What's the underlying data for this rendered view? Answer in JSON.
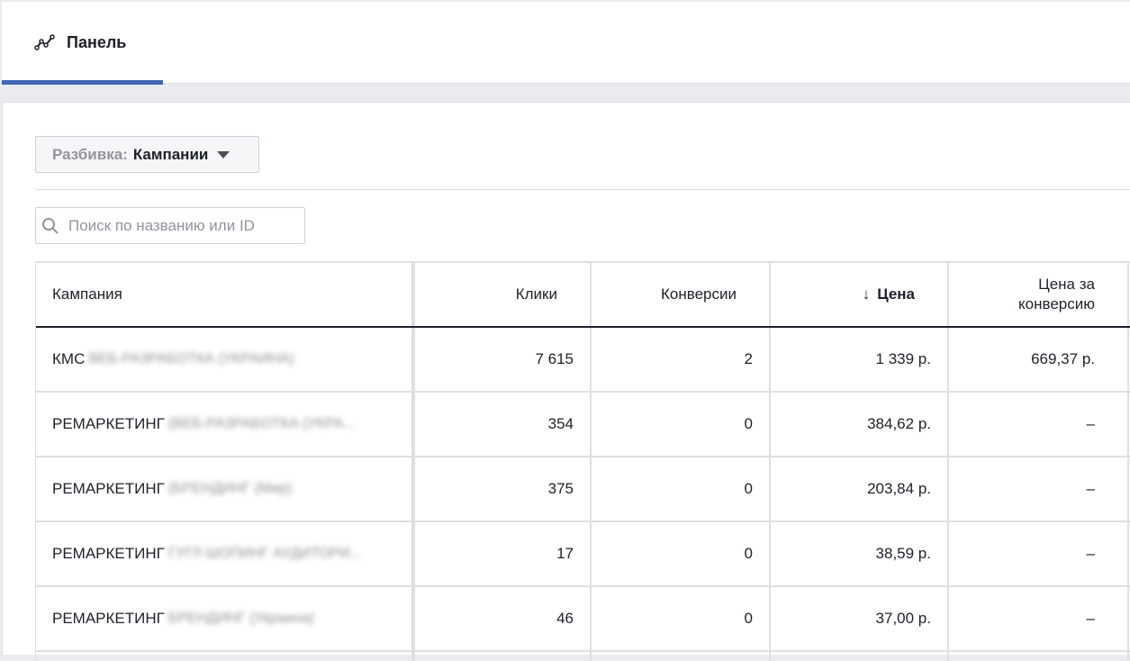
{
  "tabs": [
    {
      "label": "Панель",
      "icon": "trend-line-icon",
      "active": true
    }
  ],
  "accent_color": "#4267b2",
  "breakdown": {
    "prefix": "Разбивка:",
    "value": "Кампании"
  },
  "search": {
    "placeholder": "Поиск по названию или ID",
    "value": ""
  },
  "table": {
    "columns": {
      "campaign": "Кампания",
      "clicks": "Клики",
      "conversions": "Конверсии",
      "price": "Цена",
      "cost_per_conversion": "Цена за конверсию"
    },
    "sort": {
      "column": "price",
      "direction": "desc",
      "icon": "arrow-down-icon"
    },
    "rows": [
      {
        "name": "КМС",
        "name_blurred": "ВЕБ-РАЗРАБОТКА (УКРАИНА)",
        "clicks": "7 615",
        "conversions": "2",
        "price": "1 339 р.",
        "cost_per_conversion": "669,37 р."
      },
      {
        "name": "РЕМАРКЕТИНГ",
        "name_blurred": "(ВЕБ-РАЗРАБОТКА (УКРА...",
        "clicks": "354",
        "conversions": "0",
        "price": "384,62 р.",
        "cost_per_conversion": "–"
      },
      {
        "name": "РЕМАРКЕТИНГ",
        "name_blurred": "(БРЕНДИНГ (Мир)",
        "clicks": "375",
        "conversions": "0",
        "price": "203,84 р.",
        "cost_per_conversion": "–"
      },
      {
        "name": "РЕМАРКЕТИНГ",
        "name_blurred": "ГУГЛ ШОПИНГ АУДИТОРИ...",
        "clicks": "17",
        "conversions": "0",
        "price": "38,59 р.",
        "cost_per_conversion": "–"
      },
      {
        "name": "РЕМАРКЕТИНГ",
        "name_blurred": "БРЕНДИНГ (Украина)",
        "clicks": "46",
        "conversions": "0",
        "price": "37,00 р.",
        "cost_per_conversion": "–"
      }
    ]
  }
}
